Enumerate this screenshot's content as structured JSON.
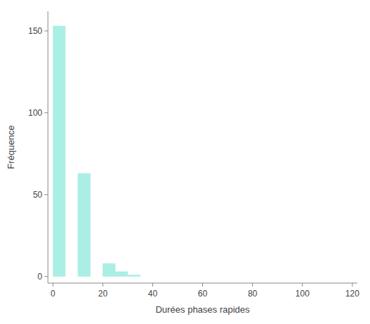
{
  "chart_data": {
    "type": "histogram",
    "x_label": "Durées phases rapides",
    "y_label": "Fréquence",
    "bins": [
      0,
      5,
      10,
      15,
      20,
      25,
      30,
      35,
      40,
      45,
      50,
      55,
      60,
      65,
      70,
      75,
      80,
      85,
      90,
      95,
      100,
      105,
      110,
      115,
      120
    ],
    "values": [
      153,
      0,
      63,
      0,
      8,
      3,
      1,
      0,
      0,
      0,
      0,
      0,
      0,
      0,
      0,
      0,
      0,
      0,
      0,
      0,
      0,
      0,
      0,
      0
    ],
    "color": "#aaeee4",
    "xlim": [
      -2,
      122
    ],
    "ylim": [
      -4,
      162
    ],
    "xticks": [
      0,
      20,
      40,
      60,
      80,
      100,
      120
    ],
    "yticks": [
      0,
      50,
      100,
      150
    ],
    "grid": false
  }
}
